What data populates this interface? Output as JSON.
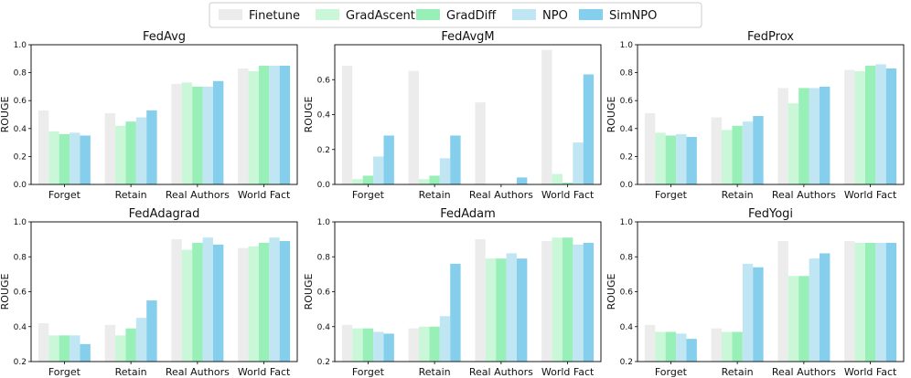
{
  "chart_data": {
    "type": "bar",
    "layout": "2x3 grid",
    "legend_position": "top-center",
    "categories": [
      "Forget",
      "Retain",
      "Real Authors",
      "World Fact"
    ],
    "series_names": [
      "Finetune",
      "GradAscent",
      "GradDiff",
      "NPO",
      "SimNPO"
    ],
    "series_colors": [
      "#ececec",
      "#c9f7d8",
      "#98f0b8",
      "#bfe6f2",
      "#86cfec"
    ],
    "ylabel": "ROUGE",
    "panels": [
      {
        "title": "FedAvg",
        "ylim": [
          0,
          1.0
        ],
        "yticks": [
          "0.0",
          "0.2",
          "0.4",
          "0.6",
          "0.8",
          "1.0"
        ],
        "series": [
          {
            "name": "Finetune",
            "values": [
              0.53,
              0.51,
              0.72,
              0.83
            ]
          },
          {
            "name": "GradAscent",
            "values": [
              0.38,
              0.42,
              0.73,
              0.81
            ]
          },
          {
            "name": "GradDiff",
            "values": [
              0.36,
              0.45,
              0.7,
              0.85
            ]
          },
          {
            "name": "NPO",
            "values": [
              0.37,
              0.48,
              0.7,
              0.85
            ]
          },
          {
            "name": "SimNPO",
            "values": [
              0.35,
              0.53,
              0.74,
              0.85
            ]
          }
        ]
      },
      {
        "title": "FedAvgM",
        "ylim": [
          0,
          0.8
        ],
        "yticks": [
          "0.0",
          "0.2",
          "0.4",
          "0.6"
        ],
        "series": [
          {
            "name": "Finetune",
            "values": [
              0.68,
              0.65,
              0.47,
              0.77
            ]
          },
          {
            "name": "GradAscent",
            "values": [
              0.03,
              0.03,
              0.0,
              0.06
            ]
          },
          {
            "name": "GradDiff",
            "values": [
              0.05,
              0.05,
              0.0,
              0.01
            ]
          },
          {
            "name": "NPO",
            "values": [
              0.16,
              0.15,
              0.0,
              0.24
            ]
          },
          {
            "name": "SimNPO",
            "values": [
              0.28,
              0.28,
              0.04,
              0.63
            ]
          }
        ]
      },
      {
        "title": "FedProx",
        "ylim": [
          0,
          1.0
        ],
        "yticks": [
          "0.0",
          "0.2",
          "0.4",
          "0.6",
          "0.8",
          "1.0"
        ],
        "series": [
          {
            "name": "Finetune",
            "values": [
              0.51,
              0.48,
              0.69,
              0.82
            ]
          },
          {
            "name": "GradAscent",
            "values": [
              0.37,
              0.39,
              0.58,
              0.81
            ]
          },
          {
            "name": "GradDiff",
            "values": [
              0.35,
              0.42,
              0.69,
              0.85
            ]
          },
          {
            "name": "NPO",
            "values": [
              0.36,
              0.45,
              0.69,
              0.86
            ]
          },
          {
            "name": "SimNPO",
            "values": [
              0.34,
              0.49,
              0.7,
              0.83
            ]
          }
        ]
      },
      {
        "title": "FedAdagrad",
        "ylim": [
          0.2,
          1.0
        ],
        "yticks": [
          "0.2",
          "0.4",
          "0.6",
          "0.8",
          "1.0"
        ],
        "series": [
          {
            "name": "Finetune",
            "values": [
              0.42,
              0.41,
              0.9,
              0.85
            ]
          },
          {
            "name": "GradAscent",
            "values": [
              0.35,
              0.35,
              0.84,
              0.86
            ]
          },
          {
            "name": "GradDiff",
            "values": [
              0.35,
              0.39,
              0.88,
              0.88
            ]
          },
          {
            "name": "NPO",
            "values": [
              0.35,
              0.45,
              0.91,
              0.91
            ]
          },
          {
            "name": "SimNPO",
            "values": [
              0.3,
              0.55,
              0.87,
              0.89
            ]
          }
        ]
      },
      {
        "title": "FedAdam",
        "ylim": [
          0.2,
          1.0
        ],
        "yticks": [
          "0.2",
          "0.4",
          "0.6",
          "0.8",
          "1.0"
        ],
        "series": [
          {
            "name": "Finetune",
            "values": [
              0.41,
              0.39,
              0.9,
              0.89
            ]
          },
          {
            "name": "GradAscent",
            "values": [
              0.39,
              0.4,
              0.79,
              0.91
            ]
          },
          {
            "name": "GradDiff",
            "values": [
              0.39,
              0.4,
              0.79,
              0.91
            ]
          },
          {
            "name": "NPO",
            "values": [
              0.37,
              0.46,
              0.82,
              0.87
            ]
          },
          {
            "name": "SimNPO",
            "values": [
              0.36,
              0.76,
              0.79,
              0.88
            ]
          }
        ]
      },
      {
        "title": "FedYogi",
        "ylim": [
          0.2,
          1.0
        ],
        "yticks": [
          "0.2",
          "0.4",
          "0.6",
          "0.8",
          "1.0"
        ],
        "series": [
          {
            "name": "Finetune",
            "values": [
              0.41,
              0.39,
              0.89,
              0.89
            ]
          },
          {
            "name": "GradAscent",
            "values": [
              0.37,
              0.37,
              0.69,
              0.88
            ]
          },
          {
            "name": "GradDiff",
            "values": [
              0.37,
              0.37,
              0.69,
              0.88
            ]
          },
          {
            "name": "NPO",
            "values": [
              0.36,
              0.76,
              0.79,
              0.88
            ]
          },
          {
            "name": "SimNPO",
            "values": [
              0.33,
              0.74,
              0.82,
              0.88
            ]
          }
        ]
      }
    ]
  }
}
